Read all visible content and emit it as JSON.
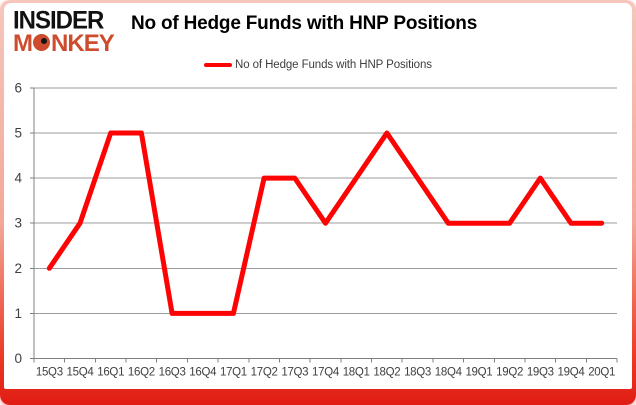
{
  "logo": {
    "line1": "INSIDER",
    "line2": "MONKEY"
  },
  "header": {
    "title": "No of Hedge Funds with HNP Positions"
  },
  "legend": {
    "label": "No of Hedge Funds with HNP Positions"
  },
  "colors": {
    "line": "#fe0303",
    "grid": "#9b9b9b",
    "axis": "#808080",
    "axis_text": "#3f3f3f",
    "logo_black": "#111111",
    "logo_red": "#cd4c2d",
    "border_pink": "#f3a898",
    "border_red": "#e81c18",
    "title_text": "#000000"
  },
  "chart_data": {
    "type": "line",
    "title": "No of Hedge Funds with HNP Positions",
    "categories": [
      "15Q3",
      "15Q4",
      "16Q1",
      "16Q2",
      "16Q3",
      "16Q4",
      "17Q1",
      "17Q2",
      "17Q3",
      "17Q4",
      "18Q1",
      "18Q2",
      "18Q3",
      "18Q4",
      "19Q1",
      "19Q2",
      "19Q3",
      "19Q4",
      "20Q1"
    ],
    "series": [
      {
        "name": "No of Hedge Funds with HNP Positions",
        "values": [
          2,
          3,
          5,
          5,
          1,
          1,
          1,
          4,
          4,
          3,
          4,
          5,
          4,
          3,
          3,
          3,
          4,
          3,
          3
        ]
      }
    ],
    "xlabel": "",
    "ylabel": "",
    "ylim": [
      0,
      6
    ],
    "yticks": [
      0,
      1,
      2,
      3,
      4,
      5,
      6
    ],
    "grid": true,
    "legend_position": "top-center"
  }
}
